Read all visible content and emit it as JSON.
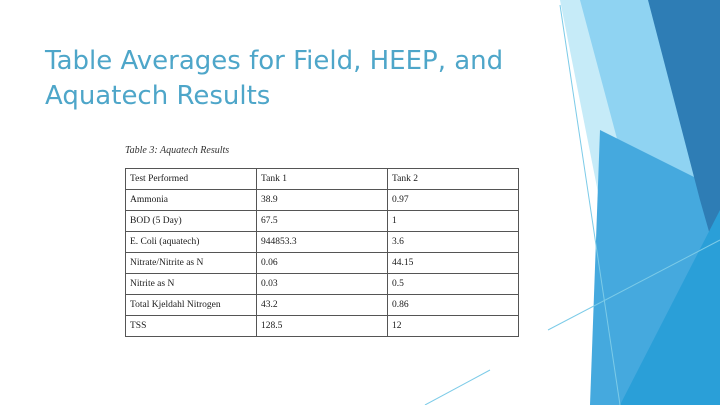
{
  "slide": {
    "title": "Table Averages for Field, HEEP, and Aquatech Results"
  },
  "table": {
    "caption": "Table 3: Aquatech Results",
    "headers": [
      "Test Performed",
      "Tank 1",
      "Tank 2"
    ],
    "rows": [
      [
        "Ammonia",
        "38.9",
        "0.97"
      ],
      [
        "BOD (5 Day)",
        "67.5",
        "1"
      ],
      [
        "E. Coli (aquatech)",
        "944853.3",
        "3.6"
      ],
      [
        "Nitrate/Nitrite as N",
        "0.06",
        "44.15"
      ],
      [
        "Nitrite as N",
        "0.03",
        "0.5"
      ],
      [
        "Total Kjeldahl Nitrogen",
        "43.2",
        "0.86"
      ],
      [
        "TSS",
        "128.5",
        "12"
      ]
    ]
  },
  "colors": {
    "title": "#4ea6c9",
    "accent_dark": "#2e7db5",
    "accent_mid": "#45a9de",
    "accent_light": "#8fd3f2",
    "accent_pale": "#c6ebf8"
  }
}
